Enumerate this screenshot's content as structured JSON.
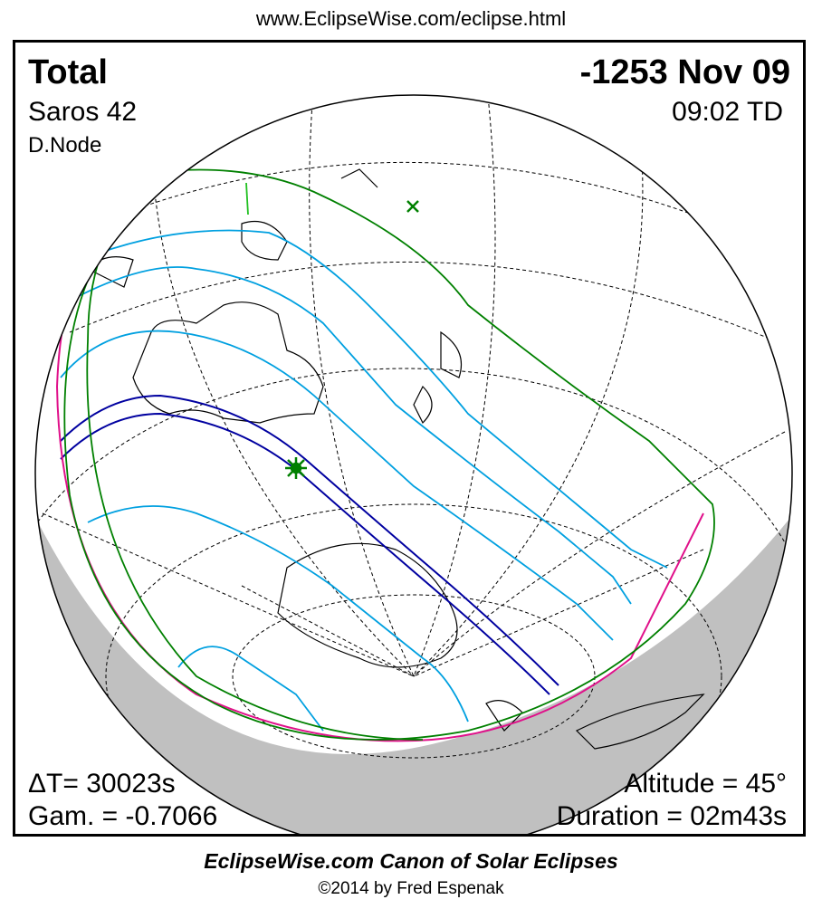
{
  "header": {
    "url": "www.EclipseWise.com/eclipse.html"
  },
  "eclipse": {
    "type": "Total",
    "date": "-1253 Nov 09",
    "saros": "Saros  42",
    "time": "09:02 TD",
    "node": "D.Node",
    "delta_t": "ΔT=  30023s",
    "gamma": "Gam. = -0.7066",
    "altitude": "Altitude = 45°",
    "duration": "Duration = 02m43s"
  },
  "map": {
    "colors": {
      "globe_outline": "#000000",
      "night_shadow": "#c0c0c0",
      "penumbra_limits": "#008000",
      "central_path": "#0000a0",
      "eclipse_lines": "#00a0e0",
      "horizon_curve": "#e0108a",
      "greatest_eclipse": "#008000"
    },
    "markers": [
      "greatest-eclipse-star-icon",
      "subsolar-cross-icon"
    ]
  },
  "footer": {
    "canon": "EclipseWise.com Canon of Solar Eclipses",
    "copyright": "©2014 by Fred Espenak"
  }
}
